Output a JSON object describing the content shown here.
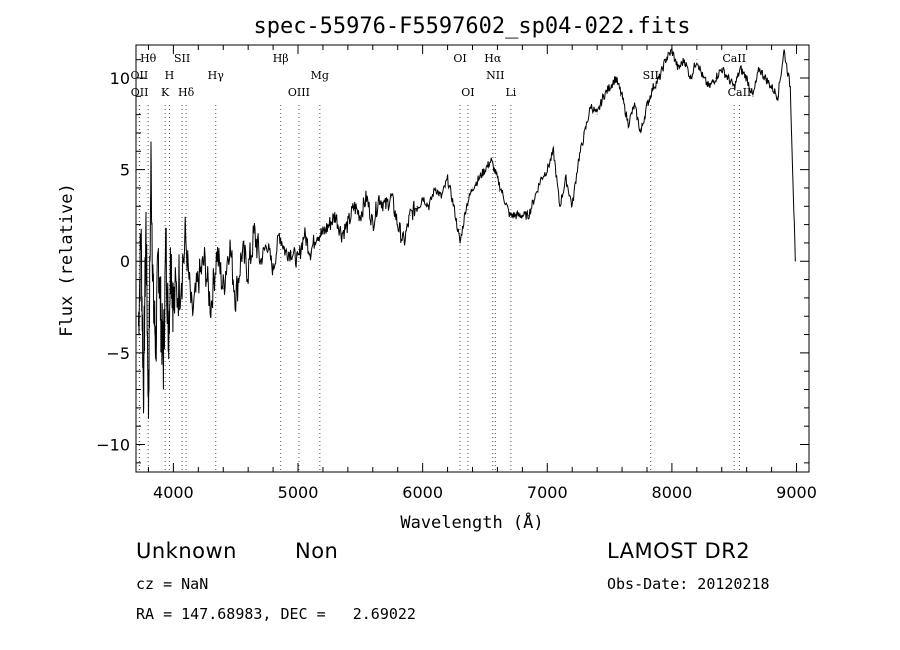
{
  "chart_data": {
    "type": "line",
    "title": "spec-55976-F5597602_sp04-022.fits",
    "xlabel": "Wavelength (Å)",
    "ylabel": "Flux (relative)",
    "xlim": [
      3700,
      9100
    ],
    "ylim": [
      -11.5,
      11.8
    ],
    "xticks": [
      4000,
      5000,
      6000,
      7000,
      8000,
      9000
    ],
    "xtick_labels": [
      "4000",
      "5000",
      "6000",
      "7000",
      "8000",
      "9000"
    ],
    "yticks": [
      -10,
      -5,
      0,
      5,
      10
    ],
    "ytick_labels": [
      "−10",
      "−5",
      "0",
      "5",
      "10"
    ],
    "grid": false,
    "legend": "none",
    "series": [
      {
        "x": [
          3720,
          3740,
          3760,
          3780,
          3800,
          3820,
          3840,
          3860,
          3880,
          3900,
          3920,
          3940,
          3960,
          3980,
          4000,
          4050,
          4100,
          4150,
          4200,
          4250,
          4300,
          4350,
          4400,
          4450,
          4500,
          4550,
          4600,
          4650,
          4700,
          4750,
          4800,
          4850,
          4900,
          4950,
          5000,
          5050,
          5100,
          5150,
          5200,
          5250,
          5300,
          5350,
          5400,
          5450,
          5500,
          5550,
          5600,
          5650,
          5700,
          5750,
          5800,
          5850,
          5900,
          5950,
          6000,
          6050,
          6100,
          6150,
          6200,
          6250,
          6300,
          6350,
          6400,
          6450,
          6500,
          6550,
          6600,
          6650,
          6700,
          6750,
          6800,
          6850,
          6900,
          6950,
          7000,
          7050,
          7100,
          7150,
          7200,
          7250,
          7300,
          7350,
          7400,
          7450,
          7500,
          7550,
          7600,
          7650,
          7700,
          7750,
          7800,
          7850,
          7900,
          7950,
          8000,
          8050,
          8100,
          8150,
          8200,
          8250,
          8300,
          8350,
          8400,
          8450,
          8500,
          8550,
          8600,
          8650,
          8700,
          8750,
          8800,
          8850,
          8900,
          8950,
          8990
        ],
        "y": [
          -3.5,
          1.5,
          -7.0,
          2.0,
          -8.0,
          5.5,
          -2.5,
          -4.5,
          0.5,
          -3.0,
          -5.5,
          1.0,
          -4.0,
          0.5,
          -2.5,
          -1.0,
          1.0,
          -3.0,
          -1.0,
          0.0,
          -2.5,
          0.5,
          -1.5,
          1.0,
          -2.0,
          0.5,
          -0.5,
          1.5,
          0.0,
          1.0,
          -0.5,
          1.5,
          0.5,
          0.5,
          0.0,
          1.5,
          0.5,
          1.5,
          1.5,
          2.0,
          2.5,
          1.5,
          2.0,
          3.0,
          2.5,
          3.5,
          2.0,
          3.5,
          3.0,
          3.5,
          2.0,
          1.0,
          2.5,
          3.0,
          3.5,
          3.0,
          4.0,
          3.5,
          4.5,
          3.0,
          1.0,
          3.0,
          4.0,
          4.5,
          5.0,
          5.5,
          4.5,
          3.5,
          2.5,
          2.5,
          2.5,
          2.5,
          3.5,
          4.5,
          5.0,
          6.0,
          3.0,
          4.5,
          3.0,
          5.5,
          7.0,
          8.5,
          8.0,
          9.0,
          9.5,
          10.0,
          9.0,
          7.5,
          8.5,
          7.0,
          8.5,
          9.5,
          10.0,
          11.0,
          11.5,
          10.5,
          11.0,
          10.0,
          11.0,
          10.0,
          9.5,
          10.0,
          10.5,
          10.0,
          9.5,
          10.5,
          10.0,
          9.0,
          10.5,
          10.0,
          9.5,
          9.0,
          11.5,
          9.5,
          0.0
        ]
      }
    ],
    "line_marks": [
      {
        "label": "Hθ",
        "x": 3798,
        "row": 0
      },
      {
        "label": "OII",
        "x": 3727,
        "row": 1
      },
      {
        "label": "OII",
        "x": 3729,
        "row": 2
      },
      {
        "label": "SII",
        "x": 4070,
        "row": 0
      },
      {
        "label": "H",
        "x": 3968,
        "row": 1
      },
      {
        "label": "K",
        "x": 3934,
        "row": 2
      },
      {
        "label": "Hδ",
        "x": 4102,
        "row": 2
      },
      {
        "label": "Hγ",
        "x": 4340,
        "row": 1
      },
      {
        "label": "Hβ",
        "x": 4861,
        "row": 0
      },
      {
        "label": "OIII",
        "x": 5007,
        "row": 2
      },
      {
        "label": "Mg",
        "x": 5175,
        "row": 1
      },
      {
        "label": "OI",
        "x": 6300,
        "row": 0
      },
      {
        "label": "OI",
        "x": 6363,
        "row": 2
      },
      {
        "label": "Hα",
        "x": 6563,
        "row": 0
      },
      {
        "label": "NII",
        "x": 6583,
        "row": 1
      },
      {
        "label": "Li",
        "x": 6708,
        "row": 2
      },
      {
        "label": "SII",
        "x": 7830,
        "row": 1
      },
      {
        "label": "CaII",
        "x": 8500,
        "row": 0
      },
      {
        "label": "CaII",
        "x": 8542,
        "row": 2
      }
    ]
  },
  "info": {
    "class": "Unknown",
    "subclass": "Non",
    "survey": "LAMOST DR2",
    "cz": "cz = NaN",
    "obs_date": "Obs-Date: 20120218",
    "coords": "RA = 147.68983, DEC =   2.69022"
  }
}
